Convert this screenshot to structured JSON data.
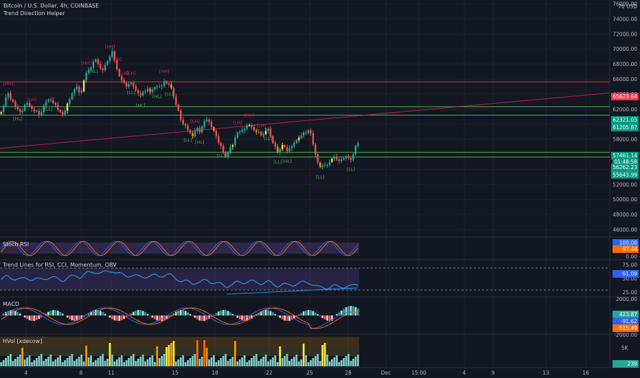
{
  "header": {
    "symbol": "Bitcoin / U.S. Dollar, 4h, COINBASE",
    "indicator": "Trend Direction Helper"
  },
  "price_axis": {
    "top_label": "76 USD",
    "ticks": [
      "76000.00",
      "74000.00",
      "72000.00",
      "70000.00",
      "68000.00",
      "66000.00",
      "64000.00",
      "62000.00",
      "60000.00",
      "58000.00",
      "54000.00",
      "52000.00",
      "50000.00",
      "48000.00",
      "46000.00"
    ]
  },
  "price_tags": [
    {
      "value": "65623.64",
      "color": "#f23645"
    },
    {
      "value": "62321.03",
      "color": "#089981"
    },
    {
      "value": "61205.87",
      "color": "#089981"
    },
    {
      "value": "57461.14",
      "color": "#089981"
    },
    {
      "value": "01:48:58",
      "color": "#089981"
    },
    {
      "value": "56262.23",
      "color": "#089981"
    },
    {
      "value": "55643.99",
      "color": "#089981"
    }
  ],
  "time_axis": [
    "4",
    "8",
    "11",
    "15",
    "18",
    "22",
    "25",
    "28",
    "Dec",
    "15:00",
    "4",
    "9",
    "13",
    "16"
  ],
  "panes": {
    "stoch": {
      "label": "Stoch RSI",
      "ticks": [
        "100.00",
        "0.00"
      ],
      "tags": [
        {
          "value": "100.00",
          "color": "#2962ff"
        },
        {
          "value": "97.44",
          "color": "#ff6d00"
        }
      ]
    },
    "trend": {
      "label": "Trend Lines for RSI, CCI, Momentum, OBV",
      "ticks": [
        "75.00",
        "50.00",
        "25.00"
      ],
      "tags": [
        {
          "value": "61.09",
          "color": "#2962ff"
        }
      ]
    },
    "macd": {
      "label": "MACD",
      "ticks": [
        "2000.00",
        "-2000.00"
      ],
      "tags": [
        {
          "value": "423.87",
          "color": "#26a69a"
        },
        {
          "value": "-91.62",
          "color": "#2962ff"
        },
        {
          "value": "-515.49",
          "color": "#ff6d00"
        }
      ]
    },
    "hvol": {
      "label": "HVol [xdecow]",
      "ticks": [
        "5K"
      ],
      "tags": [
        {
          "value": "239",
          "color": "#26a69a"
        }
      ]
    }
  },
  "pivot_labels": [
    {
      "text": "[HH]",
      "type": "high"
    },
    {
      "text": "[LH]",
      "type": "high"
    },
    {
      "text": "[HL]",
      "type": "low"
    },
    {
      "text": "[LL]",
      "type": "low"
    },
    {
      "text": "[HH]",
      "type": "high"
    },
    {
      "text": "[HH]",
      "type": "high"
    },
    {
      "text": "[HL]",
      "type": "low"
    },
    {
      "text": "[LH]",
      "type": "high"
    },
    {
      "text": "[LH]",
      "type": "high"
    },
    {
      "text": "[LH]",
      "type": "high"
    },
    {
      "text": "[LL]",
      "type": "low"
    },
    {
      "text": "[HL]",
      "type": "low"
    },
    {
      "text": "[HL]",
      "type": "low"
    },
    {
      "text": "[HH]",
      "type": "high"
    },
    {
      "text": "[LL]",
      "type": "low"
    },
    {
      "text": "[LH]",
      "type": "high"
    },
    {
      "text": "[LL]",
      "type": "low"
    },
    {
      "text": "[HL]",
      "type": "low"
    },
    {
      "text": "[LH]",
      "type": "high"
    },
    {
      "text": "[HH]",
      "type": "high"
    },
    {
      "text": "[LH]",
      "type": "high"
    },
    {
      "text": "[LL]",
      "type": "low"
    },
    {
      "text": "[LL]",
      "type": "low"
    },
    {
      "text": "[LL]",
      "type": "low"
    },
    {
      "text": "[HL]",
      "type": "low"
    },
    {
      "text": "[LL]",
      "type": "low"
    },
    {
      "text": "[LL]",
      "type": "low"
    }
  ],
  "chart_data": {
    "type": "candlestick",
    "title": "Bitcoin / U.S. Dollar, 4h, COINBASE",
    "ylim": [
      45000,
      76500
    ],
    "levels": [
      {
        "price": 65623.64,
        "color": "#f23645"
      },
      {
        "price": 62321.03,
        "color": "#4caf50"
      },
      {
        "price": 61205.87,
        "color": "#4caf50"
      },
      {
        "price": 56262.23,
        "color": "#4caf50"
      },
      {
        "price": 55643.99,
        "color": "#4caf50"
      }
    ],
    "trendline": {
      "from": {
        "bar": 0,
        "price": 56800
      },
      "to": {
        "bar": 200,
        "price": 62500
      }
    },
    "last_price": 57461.14,
    "closes": [
      61600,
      62400,
      63600,
      64100,
      63300,
      63000,
      62300,
      62000,
      61600,
      61800,
      62600,
      62800,
      62400,
      62000,
      61700,
      61800,
      61200,
      61600,
      62500,
      63000,
      63300,
      63200,
      62800,
      62600,
      61900,
      61600,
      61300,
      61800,
      62700,
      63300,
      64100,
      64600,
      65000,
      64200,
      64400,
      65800,
      66800,
      67200,
      67500,
      68300,
      68600,
      68000,
      67400,
      67200,
      67900,
      68400,
      69000,
      69700,
      68500,
      67300,
      66400,
      65800,
      65500,
      65000,
      65300,
      65500,
      65000,
      64500,
      64100,
      63800,
      64300,
      64400,
      64700,
      64300,
      64600,
      64900,
      65000,
      65000,
      65100,
      65700,
      65400,
      65300,
      64800,
      63700,
      62600,
      61800,
      60600,
      60000,
      59800,
      59200,
      58800,
      58400,
      59100,
      59500,
      58900,
      59700,
      60400,
      60600,
      60300,
      59600,
      59100,
      58400,
      57500,
      57100,
      56300,
      55700,
      56200,
      57000,
      57200,
      58200,
      58900,
      59000,
      59200,
      59400,
      59800,
      59900,
      59600,
      59200,
      59000,
      59000,
      58500,
      58700,
      59100,
      59400,
      58400,
      57500,
      57000,
      56300,
      56700,
      57200,
      57000,
      56400,
      56800,
      57100,
      57500,
      57900,
      58200,
      58500,
      58900,
      58800,
      59200,
      58800,
      57300,
      56000,
      54900,
      54300,
      54500,
      54600,
      54600,
      55000,
      55400,
      55700,
      55300,
      55100,
      55300,
      55500,
      55600,
      55500,
      55300,
      56000,
      57100,
      57461
    ]
  }
}
